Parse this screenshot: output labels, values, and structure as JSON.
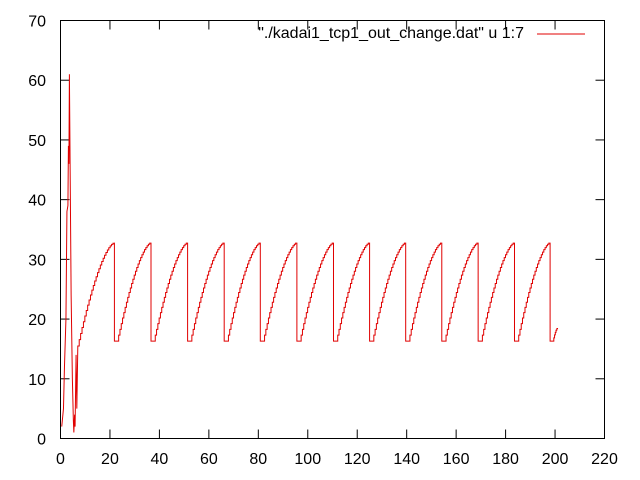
{
  "chart_data": {
    "type": "line",
    "title": "",
    "xlabel": "",
    "ylabel": "",
    "xlim": [
      0,
      220
    ],
    "ylim": [
      0,
      70
    ],
    "xticks": [
      0,
      20,
      40,
      60,
      80,
      100,
      120,
      140,
      160,
      180,
      200,
      220
    ],
    "yticks": [
      0,
      10,
      20,
      30,
      40,
      50,
      60,
      70
    ],
    "grid": false,
    "legend_position": "top-right",
    "series": [
      {
        "name": "\"./kadai1_tcp1_out_change.dat\" u 1:7",
        "color": "#e00000",
        "startup": [
          [
            0.5,
            2
          ],
          [
            1.2,
            5
          ],
          [
            1.6,
            12
          ],
          [
            2.2,
            20
          ],
          [
            2.6,
            38
          ],
          [
            3.0,
            39
          ],
          [
            3.2,
            49
          ],
          [
            3.4,
            46
          ],
          [
            3.6,
            61
          ],
          [
            3.9,
            45
          ],
          [
            4.3,
            24
          ],
          [
            4.8,
            10
          ],
          [
            5.2,
            3
          ],
          [
            5.4,
            1
          ],
          [
            5.7,
            4
          ],
          [
            5.9,
            2
          ],
          [
            6.3,
            14
          ],
          [
            6.6,
            5
          ],
          [
            7.0,
            15.5
          ]
        ],
        "sawtooth": {
          "first_ramp_start": [
            7.0,
            15.5
          ],
          "first_drop_x": 21.8,
          "drop_xs": [
            21.8,
            36.6,
            51.4,
            66.2,
            80.8,
            95.6,
            110.4,
            125.0,
            139.6,
            154.2,
            168.9,
            183.6,
            198.0
          ],
          "flat_low": 16.3,
          "flat_duration": 1.2,
          "peak": 32.8,
          "end": [
            201.0,
            18.5
          ]
        }
      }
    ]
  }
}
